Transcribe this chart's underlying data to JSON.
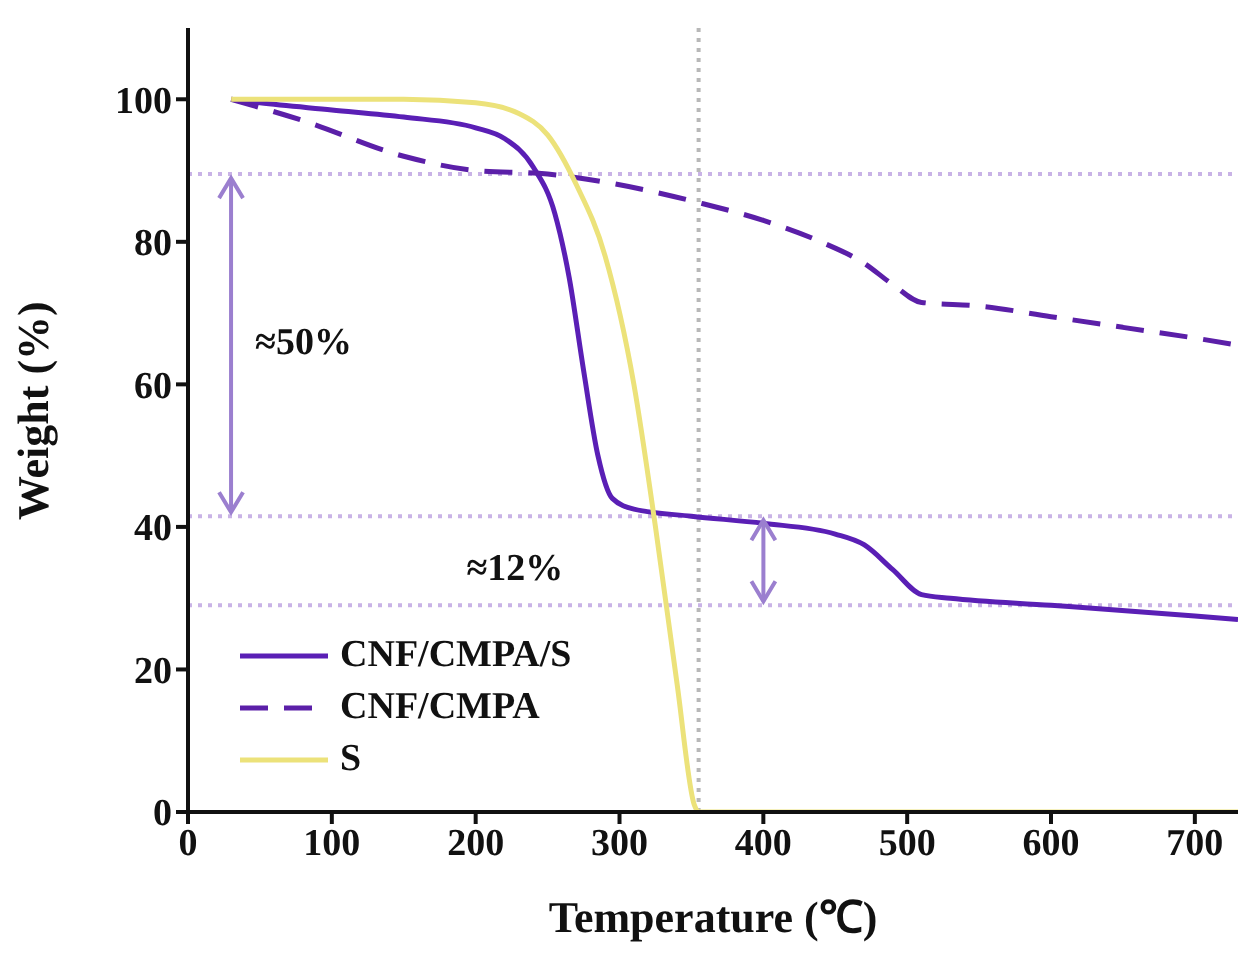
{
  "chart_data": {
    "type": "line",
    "xlabel": "Temperature (℃)",
    "ylabel": "Weight (%)",
    "xlim": [
      0,
      730
    ],
    "xticks": [
      0,
      100,
      200,
      300,
      400,
      500,
      600,
      700
    ],
    "ylim": [
      0,
      110
    ],
    "yticks": [
      0,
      20,
      40,
      60,
      80,
      100
    ],
    "grid": false,
    "legend": "bottom left",
    "marker": "none",
    "series": [
      {
        "name": "CNF/CMPA/S",
        "color": "#5a1fb5",
        "line_style": "solid",
        "x": [
          30,
          50,
          100,
          150,
          200,
          220,
          240,
          255,
          265,
          275,
          285,
          295,
          310,
          350,
          400,
          450,
          470,
          490,
          510,
          530,
          600,
          700,
          730
        ],
        "values": [
          100,
          99.5,
          98.5,
          97.5,
          96,
          94.5,
          90.5,
          84,
          75,
          62,
          50,
          44,
          42.5,
          41.5,
          40.5,
          39,
          37.5,
          34,
          30.5,
          30,
          29,
          27.5,
          27
        ]
      },
      {
        "name": "CNF/CMPA",
        "color": "#5b1fa8",
        "line_style": "dashed",
        "x": [
          30,
          80,
          150,
          200,
          250,
          300,
          355,
          400,
          440,
          470,
          490,
          510,
          550,
          600,
          650,
          700,
          730
        ],
        "values": [
          100,
          97,
          92,
          90,
          89.5,
          88,
          85.5,
          83,
          80,
          77,
          74,
          71.5,
          71,
          69.5,
          68,
          66.5,
          65.5
        ]
      },
      {
        "name": "S",
        "color": "#ece27a",
        "line_style": "solid",
        "x": [
          30,
          150,
          200,
          230,
          250,
          270,
          290,
          310,
          325,
          340,
          352,
          355,
          400,
          730
        ],
        "values": [
          100,
          100,
          99.5,
          98,
          95,
          88,
          78,
          60,
          40,
          18,
          1,
          0,
          0,
          0
        ]
      }
    ],
    "ref_lines": [
      {
        "axis": "y",
        "value": 89.5,
        "color": "#c9b3e6",
        "line_style": "dotted"
      },
      {
        "axis": "y",
        "value": 41.5,
        "color": "#c9b3e6",
        "line_style": "dotted"
      },
      {
        "axis": "y",
        "value": 29,
        "color": "#c9b3e6",
        "line_style": "dotted"
      },
      {
        "axis": "x",
        "value": 355,
        "color": "#b8b8b8",
        "line_style": "dotted"
      }
    ],
    "annotations": [
      "≈50%",
      "≈12%"
    ]
  }
}
